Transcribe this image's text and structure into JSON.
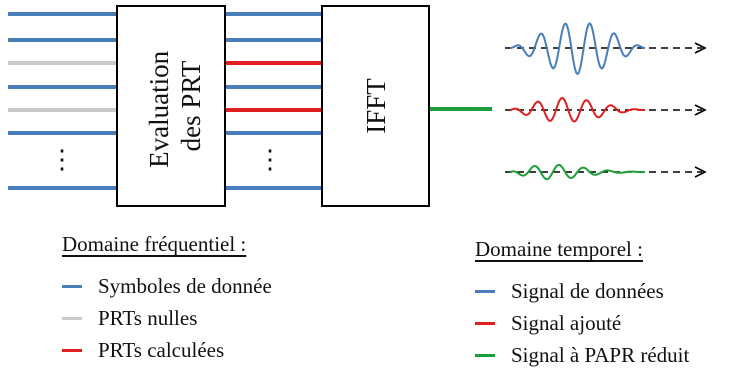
{
  "blocks": {
    "prt_eval_line1": "Evaluation",
    "prt_eval_line2": "des PRT",
    "ifft": "IFFT",
    "ellipsis": "⋮"
  },
  "colors": {
    "blue": "#4a7ebb",
    "gray": "#c9c9c9",
    "red": "#e02020",
    "green": "#1e9e3a",
    "box_stroke": "#000000"
  },
  "input_lines": [
    "blue",
    "blue",
    "gray",
    "blue",
    "gray",
    "blue",
    "blue"
  ],
  "prt_output_lines": [
    "blue",
    "blue",
    "red",
    "blue",
    "red",
    "blue",
    "blue"
  ],
  "ifft_output": "green",
  "signals": [
    "blue",
    "red",
    "green"
  ],
  "legend_frequency": {
    "title": "Domaine fréquentiel :",
    "items": [
      {
        "label": "Symboles de donnée",
        "color": "#4a7ebb"
      },
      {
        "label": "PRTs nulles",
        "color": "#c9c9c9"
      },
      {
        "label": "PRTs calculées",
        "color": "#e02020"
      }
    ]
  },
  "legend_time": {
    "title": "Domaine temporel :",
    "items": [
      {
        "label": "Signal de données",
        "color": "#4a7ebb"
      },
      {
        "label": "Signal ajouté",
        "color": "#e02020"
      },
      {
        "label": "Signal à PAPR réduit",
        "color": "#1e9e3a"
      }
    ]
  }
}
